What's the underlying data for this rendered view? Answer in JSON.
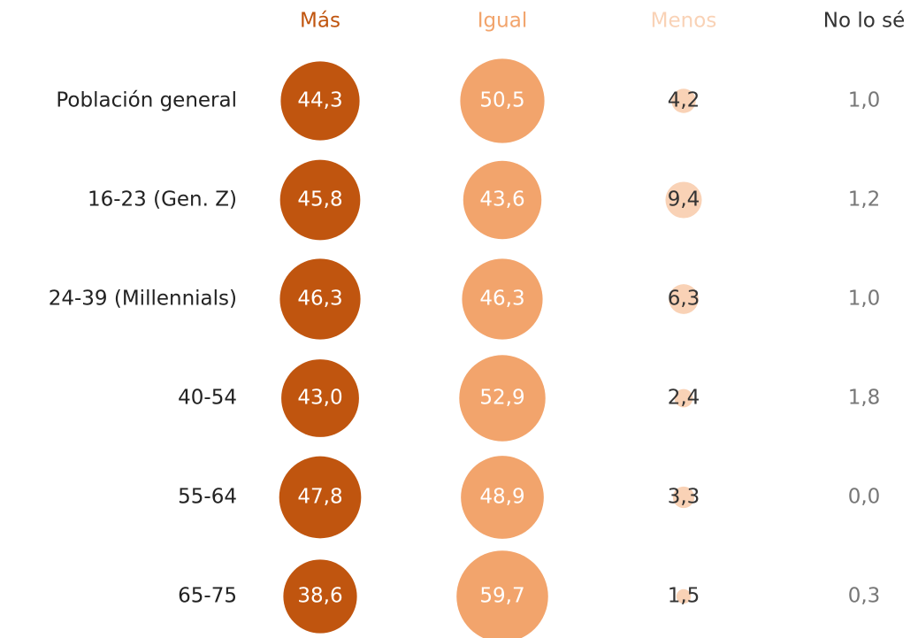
{
  "chart_data": {
    "type": "bubble",
    "categories": [
      "Población general",
      "16-23 (Gen. Z)",
      "24-39 (Millennials)",
      "40-54",
      "55-64",
      "65-75"
    ],
    "series": [
      {
        "name": "Más",
        "color": "#c0550f",
        "values": [
          44.3,
          45.8,
          46.3,
          43.0,
          47.8,
          38.6
        ],
        "value_labels": [
          "44,3",
          "45,8",
          "46,3",
          "43,0",
          "47,8",
          "38,6"
        ]
      },
      {
        "name": "Igual",
        "color": "#f2a46c",
        "values": [
          50.5,
          43.6,
          46.3,
          52.9,
          48.9,
          59.7
        ],
        "value_labels": [
          "50,5",
          "43,6",
          "46,3",
          "52,9",
          "48,9",
          "59,7"
        ]
      },
      {
        "name": "Menos",
        "color": "#f9d2b6",
        "values": [
          4.2,
          9.4,
          6.3,
          2.4,
          3.3,
          1.5
        ],
        "value_labels": [
          "4,2",
          "9,4",
          "6,3",
          "2,4",
          "3,3",
          "1,5"
        ]
      },
      {
        "name": "No lo sé",
        "color": "#ffffff",
        "values": [
          1.0,
          1.2,
          1.0,
          1.8,
          0.0,
          0.3
        ],
        "value_labels": [
          "1,0",
          "1,2",
          "1,0",
          "1,8",
          "0,0",
          "0,3"
        ]
      }
    ]
  }
}
